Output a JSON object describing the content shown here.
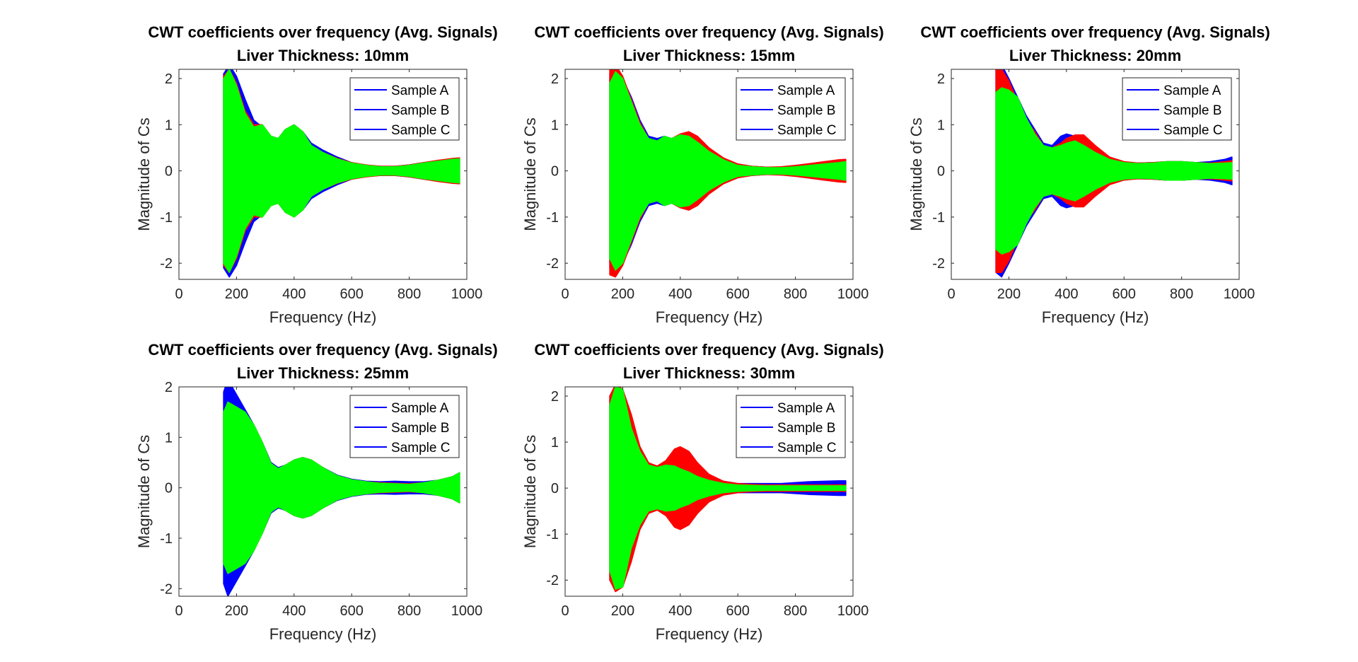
{
  "chart_data": [
    {
      "type": "area",
      "title": "CWT coefficients over frequency (Avg. Signals)",
      "subtitle": "Liver Thickness: 10mm",
      "xlabel": "Frequency (Hz)",
      "ylabel": "Magnitude of Cs",
      "xlim": [
        0,
        1000
      ],
      "ylim": [
        -2.35,
        2.2
      ],
      "xticks": [
        0,
        200,
        400,
        600,
        800,
        1000
      ],
      "yticks": [
        -2,
        -1,
        0,
        1,
        2
      ],
      "legend": "top-right",
      "legend_entries": [
        "Sample A",
        "Sample B",
        "Sample C"
      ],
      "legend_line_color": "#0000ff",
      "series": [
        {
          "color": "#0000ff",
          "x": [
            155,
            175,
            200,
            230,
            260,
            290,
            320,
            345,
            370,
            400,
            430,
            460,
            500,
            550,
            600,
            650,
            700,
            750,
            800,
            850,
            900,
            950,
            975
          ],
          "amplitude": [
            2.1,
            2.3,
            2.05,
            1.55,
            1.1,
            0.95,
            0.75,
            0.7,
            0.9,
            0.95,
            0.85,
            0.6,
            0.45,
            0.3,
            0.18,
            0.12,
            0.1,
            0.1,
            0.13,
            0.18,
            0.22,
            0.26,
            0.27
          ]
        },
        {
          "color": "#ff0000",
          "x": [
            155,
            175,
            200,
            230,
            260,
            290,
            320,
            345,
            370,
            400,
            430,
            460,
            500,
            550,
            600,
            650,
            700,
            750,
            800,
            850,
            900,
            950,
            975
          ],
          "amplitude": [
            2.05,
            2.2,
            1.9,
            1.3,
            1.0,
            1.0,
            0.75,
            0.7,
            0.9,
            1.0,
            0.85,
            0.55,
            0.4,
            0.27,
            0.18,
            0.13,
            0.1,
            0.1,
            0.13,
            0.18,
            0.23,
            0.27,
            0.28
          ]
        },
        {
          "color": "#00ff00",
          "x": [
            155,
            175,
            200,
            230,
            260,
            290,
            320,
            345,
            370,
            400,
            430,
            460,
            500,
            550,
            600,
            650,
            700,
            750,
            800,
            850,
            900,
            950,
            975
          ],
          "amplitude": [
            2.0,
            2.2,
            1.85,
            1.25,
            0.95,
            1.0,
            0.75,
            0.7,
            0.9,
            1.0,
            0.85,
            0.55,
            0.4,
            0.26,
            0.17,
            0.12,
            0.09,
            0.09,
            0.12,
            0.17,
            0.21,
            0.25,
            0.26
          ]
        }
      ]
    },
    {
      "type": "area",
      "title": "CWT coefficients over frequency (Avg. Signals)",
      "subtitle": "Liver Thickness: 15mm",
      "xlabel": "Frequency (Hz)",
      "ylabel": "Magnitude of Cs",
      "xlim": [
        0,
        1000
      ],
      "ylim": [
        -2.35,
        2.2
      ],
      "xticks": [
        0,
        200,
        400,
        600,
        800,
        1000
      ],
      "yticks": [
        -2,
        -1,
        0,
        1,
        2
      ],
      "legend": "top-right",
      "legend_entries": [
        "Sample A",
        "Sample B",
        "Sample C"
      ],
      "legend_line_color": "#0000ff",
      "series": [
        {
          "color": "#0000ff",
          "x": [
            155,
            175,
            200,
            230,
            260,
            290,
            320,
            345,
            370,
            400,
            430,
            460,
            500,
            550,
            600,
            650,
            700,
            750,
            800,
            850,
            900,
            950,
            975
          ],
          "amplitude": [
            2.1,
            2.15,
            2.0,
            1.6,
            1.1,
            0.75,
            0.7,
            0.75,
            0.7,
            0.75,
            0.75,
            0.65,
            0.45,
            0.25,
            0.13,
            0.1,
            0.08,
            0.08,
            0.1,
            0.13,
            0.16,
            0.2,
            0.22
          ]
        },
        {
          "color": "#ff0000",
          "x": [
            155,
            175,
            200,
            230,
            260,
            290,
            320,
            345,
            370,
            400,
            430,
            460,
            500,
            550,
            600,
            650,
            700,
            750,
            800,
            850,
            900,
            950,
            975
          ],
          "amplitude": [
            2.25,
            2.3,
            2.05,
            1.55,
            1.05,
            0.7,
            0.65,
            0.7,
            0.7,
            0.8,
            0.85,
            0.75,
            0.5,
            0.28,
            0.15,
            0.1,
            0.08,
            0.09,
            0.12,
            0.16,
            0.2,
            0.24,
            0.25
          ]
        },
        {
          "color": "#00ff00",
          "x": [
            155,
            175,
            200,
            230,
            260,
            290,
            320,
            345,
            370,
            400,
            430,
            460,
            500,
            550,
            600,
            650,
            700,
            750,
            800,
            850,
            900,
            950,
            975
          ],
          "amplitude": [
            1.9,
            2.15,
            2.0,
            1.5,
            1.0,
            0.7,
            0.65,
            0.75,
            0.7,
            0.78,
            0.75,
            0.62,
            0.42,
            0.24,
            0.12,
            0.09,
            0.07,
            0.07,
            0.09,
            0.12,
            0.15,
            0.18,
            0.2
          ]
        }
      ]
    },
    {
      "type": "area",
      "title": "CWT coefficients over frequency (Avg. Signals)",
      "subtitle": "Liver Thickness: 20mm",
      "xlabel": "Frequency (Hz)",
      "ylabel": "Magnitude of Cs",
      "xlim": [
        0,
        1000
      ],
      "ylim": [
        -2.35,
        2.2
      ],
      "xticks": [
        0,
        200,
        400,
        600,
        800,
        1000
      ],
      "yticks": [
        -2,
        -1,
        0,
        1,
        2
      ],
      "legend": "top-right",
      "legend_entries": [
        "Sample A",
        "Sample B",
        "Sample C"
      ],
      "legend_line_color": "#0000ff",
      "series": [
        {
          "color": "#0000ff",
          "x": [
            155,
            175,
            200,
            230,
            260,
            290,
            320,
            350,
            380,
            400,
            430,
            460,
            500,
            550,
            600,
            650,
            700,
            750,
            800,
            850,
            900,
            950,
            975
          ],
          "amplitude": [
            2.2,
            2.3,
            2.0,
            1.6,
            1.2,
            0.9,
            0.6,
            0.55,
            0.75,
            0.8,
            0.75,
            0.6,
            0.4,
            0.25,
            0.18,
            0.17,
            0.18,
            0.2,
            0.2,
            0.18,
            0.2,
            0.25,
            0.3
          ]
        },
        {
          "color": "#ff0000",
          "x": [
            155,
            175,
            200,
            230,
            260,
            290,
            320,
            350,
            380,
            400,
            430,
            460,
            500,
            550,
            600,
            650,
            700,
            750,
            800,
            850,
            900,
            950,
            975
          ],
          "amplitude": [
            2.2,
            2.2,
            1.95,
            1.5,
            1.1,
            0.85,
            0.55,
            0.5,
            0.6,
            0.7,
            0.78,
            0.78,
            0.55,
            0.3,
            0.2,
            0.17,
            0.18,
            0.2,
            0.2,
            0.18,
            0.17,
            0.2,
            0.22
          ]
        },
        {
          "color": "#00ff00",
          "x": [
            155,
            175,
            200,
            230,
            260,
            290,
            320,
            350,
            380,
            400,
            430,
            460,
            500,
            550,
            600,
            650,
            700,
            750,
            800,
            850,
            900,
            950,
            975
          ],
          "amplitude": [
            1.7,
            1.8,
            1.75,
            1.6,
            1.15,
            0.8,
            0.55,
            0.5,
            0.55,
            0.6,
            0.65,
            0.55,
            0.4,
            0.25,
            0.18,
            0.16,
            0.17,
            0.2,
            0.2,
            0.18,
            0.16,
            0.17,
            0.18
          ]
        }
      ]
    },
    {
      "type": "area",
      "title": "CWT coefficients over frequency (Avg. Signals)",
      "subtitle": "Liver Thickness: 25mm",
      "xlabel": "Frequency (Hz)",
      "ylabel": "Magnitude of Cs",
      "xlim": [
        0,
        1000
      ],
      "ylim": [
        -2.15,
        2.0
      ],
      "xticks": [
        0,
        200,
        400,
        600,
        800,
        1000
      ],
      "yticks": [
        -2,
        -1,
        0,
        1,
        2
      ],
      "legend": "top-right",
      "legend_entries": [
        "Sample A",
        "Sample B",
        "Sample C"
      ],
      "legend_line_color": "#0000ff",
      "series": [
        {
          "color": "#0000ff",
          "x": [
            155,
            170,
            200,
            230,
            260,
            290,
            320,
            345,
            370,
            400,
            430,
            460,
            500,
            550,
            600,
            650,
            700,
            750,
            800,
            850,
            900,
            950,
            975
          ],
          "amplitude": [
            1.9,
            2.15,
            1.85,
            1.55,
            1.25,
            0.9,
            0.5,
            0.4,
            0.45,
            0.55,
            0.6,
            0.55,
            0.4,
            0.25,
            0.17,
            0.13,
            0.12,
            0.13,
            0.12,
            0.12,
            0.15,
            0.22,
            0.3
          ]
        },
        {
          "color": "#ff0000",
          "x": [
            155,
            170,
            200,
            230,
            260,
            290,
            320,
            345,
            370,
            400,
            430,
            460,
            500,
            550,
            600,
            650,
            700,
            750,
            800,
            850,
            900,
            950,
            975
          ],
          "amplitude": [
            1.5,
            1.7,
            1.6,
            1.5,
            1.25,
            0.9,
            0.48,
            0.38,
            0.45,
            0.55,
            0.6,
            0.55,
            0.4,
            0.24,
            0.16,
            0.12,
            0.1,
            0.09,
            0.08,
            0.1,
            0.15,
            0.22,
            0.3
          ]
        },
        {
          "color": "#00ff00",
          "x": [
            155,
            170,
            200,
            230,
            260,
            290,
            320,
            345,
            370,
            400,
            430,
            460,
            500,
            550,
            600,
            650,
            700,
            750,
            800,
            850,
            900,
            950,
            975
          ],
          "amplitude": [
            1.5,
            1.7,
            1.6,
            1.5,
            1.25,
            0.9,
            0.48,
            0.38,
            0.45,
            0.55,
            0.6,
            0.55,
            0.4,
            0.24,
            0.16,
            0.12,
            0.09,
            0.08,
            0.07,
            0.1,
            0.15,
            0.22,
            0.3
          ]
        }
      ]
    },
    {
      "type": "area",
      "title": "CWT coefficients over frequency (Avg. Signals)",
      "subtitle": "Liver Thickness: 30mm",
      "xlabel": "Frequency (Hz)",
      "ylabel": "Magnitude of Cs",
      "xlim": [
        0,
        1000
      ],
      "ylim": [
        -2.35,
        2.2
      ],
      "xticks": [
        0,
        200,
        400,
        600,
        800,
        1000
      ],
      "yticks": [
        -2,
        -1,
        0,
        1,
        2
      ],
      "legend": "top-right",
      "legend_entries": [
        "Sample A",
        "Sample B",
        "Sample C"
      ],
      "legend_line_color": "#0000ff",
      "series": [
        {
          "color": "#0000ff",
          "x": [
            155,
            175,
            200,
            230,
            260,
            290,
            320,
            350,
            380,
            400,
            430,
            460,
            500,
            550,
            600,
            650,
            700,
            750,
            800,
            850,
            900,
            950,
            975
          ],
          "amplitude": [
            2.0,
            2.2,
            2.1,
            1.5,
            0.9,
            0.55,
            0.45,
            0.5,
            0.5,
            0.5,
            0.45,
            0.35,
            0.25,
            0.15,
            0.1,
            0.1,
            0.1,
            0.1,
            0.12,
            0.14,
            0.15,
            0.16,
            0.16
          ]
        },
        {
          "color": "#ff0000",
          "x": [
            155,
            175,
            200,
            230,
            260,
            290,
            320,
            350,
            380,
            400,
            430,
            460,
            500,
            550,
            600,
            650,
            700,
            750,
            800,
            850,
            900,
            950,
            975
          ],
          "amplitude": [
            2.0,
            2.25,
            2.15,
            1.6,
            0.9,
            0.55,
            0.48,
            0.6,
            0.85,
            0.9,
            0.8,
            0.55,
            0.3,
            0.15,
            0.1,
            0.08,
            0.07,
            0.07,
            0.07,
            0.07,
            0.07,
            0.07,
            0.07
          ]
        },
        {
          "color": "#00ff00",
          "x": [
            155,
            175,
            200,
            230,
            260,
            290,
            320,
            350,
            380,
            400,
            430,
            460,
            500,
            550,
            600,
            650,
            700,
            750,
            800,
            850,
            900,
            950,
            975
          ],
          "amplitude": [
            1.8,
            2.2,
            2.15,
            1.3,
            0.8,
            0.5,
            0.45,
            0.5,
            0.48,
            0.42,
            0.35,
            0.25,
            0.17,
            0.1,
            0.07,
            0.06,
            0.05,
            0.05,
            0.05,
            0.05,
            0.05,
            0.05,
            0.05
          ]
        }
      ]
    }
  ]
}
